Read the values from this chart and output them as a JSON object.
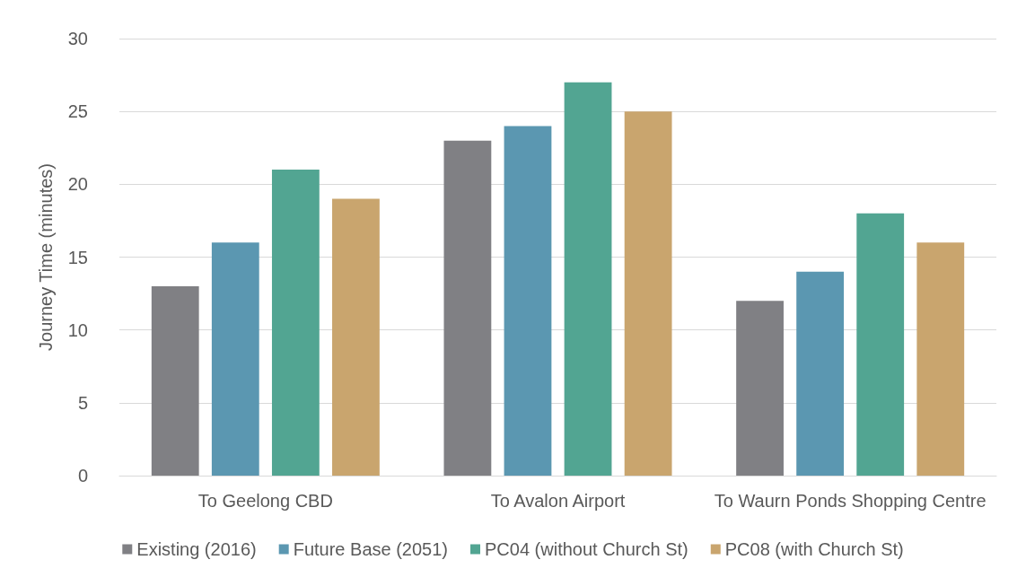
{
  "chart_data": {
    "type": "bar",
    "ylabel": "Journey Time (minutes)",
    "categories": [
      "To Geelong CBD",
      "To Avalon Airport",
      "To Waurn Ponds Shopping Centre"
    ],
    "series": [
      {
        "name": "Existing (2016)",
        "color": "#808084",
        "values": [
          13,
          23,
          12
        ]
      },
      {
        "name": "Future Base (2051)",
        "color": "#5b97b1",
        "values": [
          16,
          24,
          14
        ]
      },
      {
        "name": "PC04 (without Church St)",
        "color": "#52a592",
        "values": [
          21,
          27,
          18
        ]
      },
      {
        "name": "PC08 (with Church St)",
        "color": "#c9a56e",
        "values": [
          19,
          25,
          16
        ]
      }
    ],
    "ylim": [
      0,
      30
    ],
    "yticks": [
      0,
      5,
      10,
      15,
      20,
      25,
      30
    ],
    "grid": "y",
    "legend": "bottom"
  }
}
